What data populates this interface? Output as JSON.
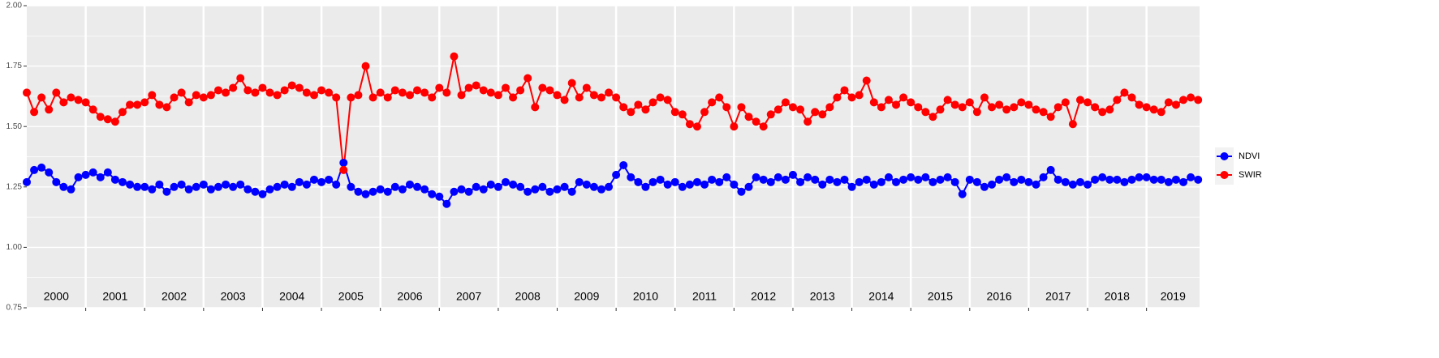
{
  "chart_data": {
    "type": "line",
    "xlim": [
      2000,
      2019.9
    ],
    "xticks": [
      {
        "value": 2000,
        "label": "2000"
      },
      {
        "value": 2001,
        "label": "2001"
      },
      {
        "value": 2002,
        "label": "2002"
      },
      {
        "value": 2003,
        "label": "2003"
      },
      {
        "value": 2004,
        "label": "2004"
      },
      {
        "value": 2005,
        "label": "2005"
      },
      {
        "value": 2006,
        "label": "2006"
      },
      {
        "value": 2007,
        "label": "2007"
      },
      {
        "value": 2008,
        "label": "2008"
      },
      {
        "value": 2009,
        "label": "2009"
      },
      {
        "value": 2010,
        "label": "2010"
      },
      {
        "value": 2011,
        "label": "2011"
      },
      {
        "value": 2012,
        "label": "2012"
      },
      {
        "value": 2013,
        "label": "2013"
      },
      {
        "value": 2014,
        "label": "2014"
      },
      {
        "value": 2015,
        "label": "2015"
      },
      {
        "value": 2016,
        "label": "2016"
      },
      {
        "value": 2017,
        "label": "2017"
      },
      {
        "value": 2018,
        "label": "2018"
      },
      {
        "value": 2019,
        "label": "2019"
      }
    ],
    "ylim": [
      0.75,
      2.0
    ],
    "yticks": [
      {
        "value": 0.75,
        "label": "0.75"
      },
      {
        "value": 1.0,
        "label": "1.00"
      },
      {
        "value": 1.25,
        "label": "1.25"
      },
      {
        "value": 1.5,
        "label": "1.50"
      },
      {
        "value": 1.75,
        "label": "1.75"
      },
      {
        "value": 2.0,
        "label": "2.00"
      }
    ],
    "grid": true,
    "legend": "right",
    "x": [
      2000,
      2000.125,
      2000.25,
      2000.375,
      2000.5,
      2000.625,
      2000.75,
      2000.875,
      2001,
      2001.125,
      2001.25,
      2001.375,
      2001.5,
      2001.625,
      2001.75,
      2001.875,
      2002,
      2002.125,
      2002.25,
      2002.375,
      2002.5,
      2002.625,
      2002.75,
      2002.875,
      2003,
      2003.125,
      2003.25,
      2003.375,
      2003.5,
      2003.625,
      2003.75,
      2003.875,
      2004,
      2004.125,
      2004.25,
      2004.375,
      2004.5,
      2004.625,
      2004.75,
      2004.875,
      2005,
      2005.125,
      2005.25,
      2005.375,
      2005.5,
      2005.625,
      2005.75,
      2005.875,
      2006,
      2006.125,
      2006.25,
      2006.375,
      2006.5,
      2006.625,
      2006.75,
      2006.875,
      2007,
      2007.125,
      2007.25,
      2007.375,
      2007.5,
      2007.625,
      2007.75,
      2007.875,
      2008,
      2008.125,
      2008.25,
      2008.375,
      2008.5,
      2008.625,
      2008.75,
      2008.875,
      2009,
      2009.125,
      2009.25,
      2009.375,
      2009.5,
      2009.625,
      2009.75,
      2009.875,
      2010,
      2010.125,
      2010.25,
      2010.375,
      2010.5,
      2010.625,
      2010.75,
      2010.875,
      2011,
      2011.125,
      2011.25,
      2011.375,
      2011.5,
      2011.625,
      2011.75,
      2011.875,
      2012,
      2012.125,
      2012.25,
      2012.375,
      2012.5,
      2012.625,
      2012.75,
      2012.875,
      2013,
      2013.125,
      2013.25,
      2013.375,
      2013.5,
      2013.625,
      2013.75,
      2013.875,
      2014,
      2014.125,
      2014.25,
      2014.375,
      2014.5,
      2014.625,
      2014.75,
      2014.875,
      2015,
      2015.125,
      2015.25,
      2015.375,
      2015.5,
      2015.625,
      2015.75,
      2015.875,
      2016,
      2016.125,
      2016.25,
      2016.375,
      2016.5,
      2016.625,
      2016.75,
      2016.875,
      2017,
      2017.125,
      2017.25,
      2017.375,
      2017.5,
      2017.625,
      2017.75,
      2017.875,
      2018,
      2018.125,
      2018.25,
      2018.375,
      2018.5,
      2018.625,
      2018.75,
      2018.875,
      2019,
      2019.125,
      2019.25,
      2019.375,
      2019.5,
      2019.625,
      2019.75,
      2019.875
    ],
    "series": [
      {
        "name": "NDVI",
        "color": "#0000ff",
        "values": [
          1.27,
          1.32,
          1.33,
          1.31,
          1.27,
          1.25,
          1.24,
          1.29,
          1.3,
          1.31,
          1.29,
          1.31,
          1.28,
          1.27,
          1.26,
          1.25,
          1.25,
          1.24,
          1.26,
          1.23,
          1.25,
          1.26,
          1.24,
          1.25,
          1.26,
          1.24,
          1.25,
          1.26,
          1.25,
          1.26,
          1.24,
          1.23,
          1.22,
          1.24,
          1.25,
          1.26,
          1.25,
          1.27,
          1.26,
          1.28,
          1.27,
          1.28,
          1.26,
          1.35,
          1.25,
          1.23,
          1.22,
          1.23,
          1.24,
          1.23,
          1.25,
          1.24,
          1.26,
          1.25,
          1.24,
          1.22,
          1.21,
          1.18,
          1.23,
          1.24,
          1.23,
          1.25,
          1.24,
          1.26,
          1.25,
          1.27,
          1.26,
          1.25,
          1.23,
          1.24,
          1.25,
          1.23,
          1.24,
          1.25,
          1.23,
          1.27,
          1.26,
          1.25,
          1.24,
          1.25,
          1.3,
          1.34,
          1.29,
          1.27,
          1.25,
          1.27,
          1.28,
          1.26,
          1.27,
          1.25,
          1.26,
          1.27,
          1.26,
          1.28,
          1.27,
          1.29,
          1.26,
          1.23,
          1.25,
          1.29,
          1.28,
          1.27,
          1.29,
          1.28,
          1.3,
          1.27,
          1.29,
          1.28,
          1.26,
          1.28,
          1.27,
          1.28,
          1.25,
          1.27,
          1.28,
          1.26,
          1.27,
          1.29,
          1.27,
          1.28,
          1.29,
          1.28,
          1.29,
          1.27,
          1.28,
          1.29,
          1.27,
          1.22,
          1.28,
          1.27,
          1.25,
          1.26,
          1.28,
          1.29,
          1.27,
          1.28,
          1.27,
          1.26,
          1.29,
          1.32,
          1.28,
          1.27,
          1.26,
          1.27,
          1.26,
          1.28,
          1.29,
          1.28,
          1.28,
          1.27,
          1.28,
          1.29,
          1.29,
          1.28,
          1.28,
          1.27,
          1.28,
          1.27,
          1.29,
          1.28
        ]
      },
      {
        "name": "SWIR",
        "color": "#ff0000",
        "values": [
          1.64,
          1.56,
          1.62,
          1.57,
          1.64,
          1.6,
          1.62,
          1.61,
          1.6,
          1.57,
          1.54,
          1.53,
          1.52,
          1.56,
          1.59,
          1.59,
          1.6,
          1.63,
          1.59,
          1.58,
          1.62,
          1.64,
          1.6,
          1.63,
          1.62,
          1.63,
          1.65,
          1.64,
          1.66,
          1.7,
          1.65,
          1.64,
          1.66,
          1.64,
          1.63,
          1.65,
          1.67,
          1.66,
          1.64,
          1.63,
          1.65,
          1.64,
          1.62,
          1.32,
          1.62,
          1.63,
          1.75,
          1.62,
          1.64,
          1.62,
          1.65,
          1.64,
          1.63,
          1.65,
          1.64,
          1.62,
          1.66,
          1.64,
          1.79,
          1.63,
          1.66,
          1.67,
          1.65,
          1.64,
          1.63,
          1.66,
          1.62,
          1.65,
          1.7,
          1.58,
          1.66,
          1.65,
          1.63,
          1.61,
          1.68,
          1.62,
          1.66,
          1.63,
          1.62,
          1.64,
          1.62,
          1.58,
          1.56,
          1.59,
          1.57,
          1.6,
          1.62,
          1.61,
          1.56,
          1.55,
          1.51,
          1.5,
          1.56,
          1.6,
          1.62,
          1.58,
          1.5,
          1.58,
          1.54,
          1.52,
          1.5,
          1.55,
          1.57,
          1.6,
          1.58,
          1.57,
          1.52,
          1.56,
          1.55,
          1.58,
          1.62,
          1.65,
          1.62,
          1.63,
          1.69,
          1.6,
          1.58,
          1.61,
          1.59,
          1.62,
          1.6,
          1.58,
          1.56,
          1.54,
          1.57,
          1.61,
          1.59,
          1.58,
          1.6,
          1.56,
          1.62,
          1.58,
          1.59,
          1.57,
          1.58,
          1.6,
          1.59,
          1.57,
          1.56,
          1.54,
          1.58,
          1.6,
          1.51,
          1.61,
          1.6,
          1.58,
          1.56,
          1.57,
          1.61,
          1.64,
          1.62,
          1.59,
          1.58,
          1.57,
          1.56,
          1.6,
          1.59,
          1.61,
          1.62,
          1.61
        ]
      }
    ]
  }
}
